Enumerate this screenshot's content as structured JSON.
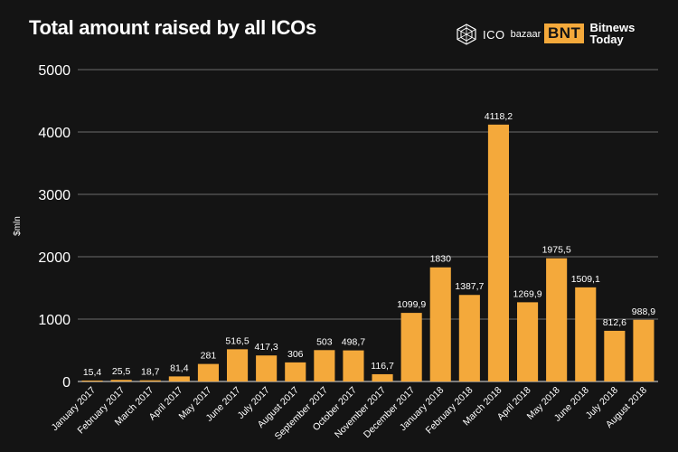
{
  "header": {
    "ico_logo_text": "ICO",
    "ico_logo_sub": "bazaar",
    "bnt_badge": "BNT",
    "bnt_line1": "Bitnews",
    "bnt_line2": "Today"
  },
  "colors": {
    "background": "#141414",
    "bar": "#f4a93b",
    "grid": "#8a8a8a"
  },
  "chart_data": {
    "type": "bar",
    "title": "Total amount raised by all ICOs",
    "xlabel": "",
    "ylabel": "$mln",
    "ylim": [
      0,
      5000
    ],
    "yticks": [
      0,
      1000,
      2000,
      3000,
      4000,
      5000
    ],
    "grid": true,
    "categories": [
      "January 2017",
      "February 2017",
      "March 2017",
      "April 2017",
      "May 2017",
      "June 2017",
      "July 2017",
      "August 2017",
      "September 2017",
      "October 2017",
      "November 2017",
      "December 2017",
      "January 2018",
      "February 2018",
      "March 2018",
      "April 2018",
      "May 2018",
      "June 2018",
      "July 2018",
      "August 2018"
    ],
    "values": [
      15.4,
      25.5,
      18.7,
      81.4,
      281,
      516.5,
      417.3,
      306,
      503,
      498.7,
      116.7,
      1099.9,
      1830,
      1387.7,
      4118.2,
      1269.9,
      1975.5,
      1509.1,
      812.6,
      988.9
    ],
    "labels": [
      "15,4",
      "25,5",
      "18,7",
      "81,4",
      "281",
      "516,5",
      "417,3",
      "306",
      "503",
      "498,7",
      "116,7",
      "1099,9",
      "1830",
      "1387,7",
      "4118,2",
      "1269,9",
      "1975,5",
      "1509,1",
      "812,6",
      "988,9"
    ]
  }
}
